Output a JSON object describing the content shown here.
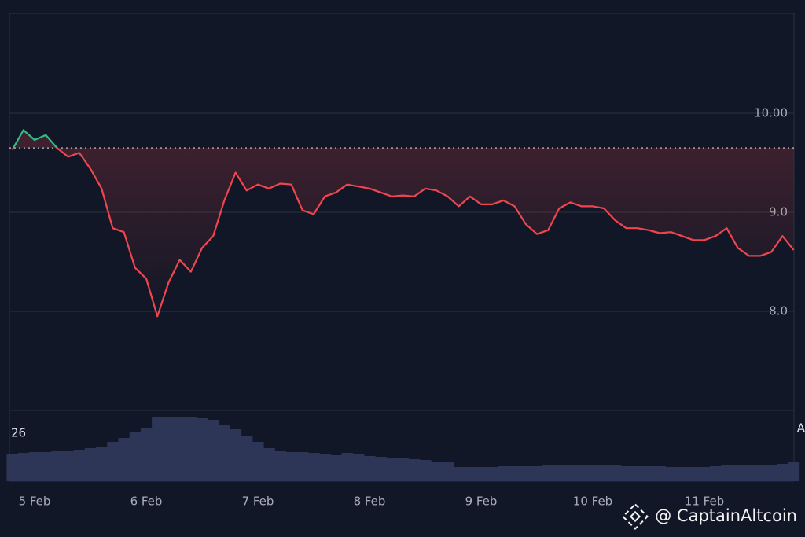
{
  "chart_data": {
    "type": "line",
    "categories": [
      null,
      null,
      "5 Feb",
      null,
      null,
      null,
      null,
      null,
      null,
      null,
      null,
      null,
      "6 Feb",
      null,
      null,
      null,
      null,
      null,
      null,
      null,
      null,
      null,
      "7 Feb",
      null,
      null,
      null,
      null,
      null,
      null,
      null,
      null,
      null,
      "8 Feb",
      null,
      null,
      null,
      null,
      null,
      null,
      null,
      null,
      null,
      "9 Feb",
      null,
      null,
      null,
      null,
      null,
      null,
      null,
      null,
      null,
      "10 Feb",
      null,
      null,
      null,
      null,
      null,
      null,
      null,
      null,
      null,
      "11 Feb",
      null,
      null,
      null,
      null,
      null,
      null,
      null,
      null
    ],
    "values": [
      9.63,
      9.83,
      9.73,
      9.78,
      9.65,
      9.56,
      9.6,
      9.44,
      9.24,
      8.84,
      8.8,
      8.44,
      8.33,
      7.95,
      8.29,
      8.52,
      8.4,
      8.64,
      8.76,
      9.12,
      9.4,
      9.22,
      9.28,
      9.24,
      9.29,
      9.28,
      9.02,
      8.98,
      9.16,
      9.2,
      9.28,
      9.26,
      9.24,
      9.2,
      9.16,
      9.17,
      9.16,
      9.24,
      9.22,
      9.16,
      9.06,
      9.16,
      9.08,
      9.08,
      9.12,
      9.06,
      8.88,
      8.78,
      8.82,
      9.04,
      9.1,
      9.06,
      9.06,
      9.04,
      8.92,
      8.84,
      8.84,
      8.82,
      8.79,
      8.8,
      8.76,
      8.72,
      8.72,
      8.76,
      8.84,
      8.64,
      8.56,
      8.56,
      8.6,
      8.76,
      8.62
    ],
    "baseline": 9.65,
    "color_up": "#2ebd85",
    "color_down": "#f0454f",
    "ylim": [
      7.0,
      11.0
    ],
    "yticks": [
      {
        "value": 8.0,
        "label": "8.0"
      },
      {
        "value": 9.0,
        "label": "9.0"
      },
      {
        "value": 10.0,
        "label": "10.00"
      }
    ],
    "grid": true,
    "volume": [
      35,
      36,
      37,
      37,
      38,
      39,
      40,
      42,
      44,
      50,
      55,
      62,
      68,
      82,
      82,
      82,
      82,
      80,
      78,
      72,
      66,
      58,
      50,
      42,
      38,
      37,
      37,
      36,
      35,
      33,
      36,
      34,
      32,
      31,
      30,
      29,
      28,
      27,
      25,
      24,
      18,
      18,
      18,
      18,
      19,
      19,
      19,
      19,
      20,
      20,
      20,
      20,
      20,
      20,
      20,
      19,
      19,
      19,
      19,
      18,
      18,
      18,
      18,
      19,
      20,
      20,
      20,
      20,
      21,
      22,
      24
    ],
    "volume_ylim": [
      0,
      90
    ],
    "volume_color": "#2d3656",
    "volume_label": "26",
    "volume_right_label": "A",
    "watermark": "@ CaptainAltcoin"
  }
}
